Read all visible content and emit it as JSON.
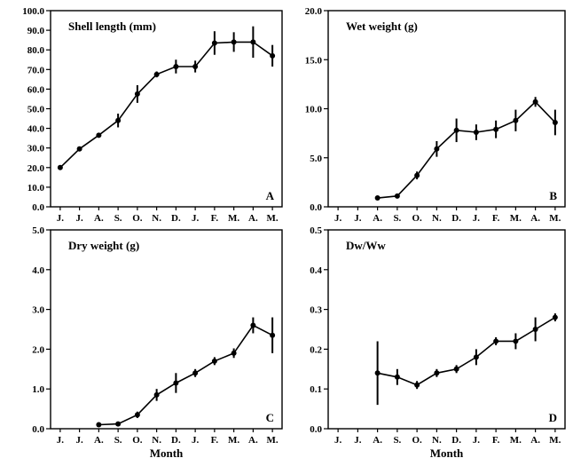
{
  "chart_data": [
    {
      "type": "line",
      "title": "Shell length (mm)",
      "panel_label": "A",
      "xlabel": "",
      "categories": [
        "J.",
        "J.",
        "A.",
        "S.",
        "O.",
        "N.",
        "D.",
        "J.",
        "F.",
        "M.",
        "A.",
        "M."
      ],
      "ylim": [
        0,
        100
      ],
      "yticks": [
        "0.0",
        "10.0",
        "20.0",
        "30.0",
        "40.0",
        "50.0",
        "60.0",
        "70.0",
        "80.0",
        "90.0",
        "100.0"
      ],
      "values": [
        20.0,
        29.5,
        36.5,
        44.0,
        57.5,
        67.5,
        71.5,
        71.5,
        83.5,
        84.0,
        84.0,
        77.0
      ],
      "errors": [
        0.6,
        0.6,
        1.0,
        3.5,
        4.5,
        1.5,
        3.5,
        3.0,
        6.0,
        5.0,
        8.0,
        5.5
      ]
    },
    {
      "type": "line",
      "title": "Wet weight (g)",
      "panel_label": "B",
      "xlabel": "",
      "categories": [
        "J.",
        "J.",
        "A.",
        "S.",
        "O.",
        "N.",
        "D.",
        "J.",
        "F.",
        "M.",
        "A.",
        "M."
      ],
      "ylim": [
        0,
        20
      ],
      "yticks": [
        "0.0",
        "5.0",
        "10.0",
        "15.0",
        "20.0"
      ],
      "values": [
        null,
        null,
        0.9,
        1.1,
        3.2,
        5.9,
        7.8,
        7.6,
        7.9,
        8.8,
        10.7,
        8.6
      ],
      "errors": [
        0,
        0,
        0.1,
        0.1,
        0.4,
        0.8,
        1.2,
        0.8,
        0.9,
        1.1,
        0.5,
        1.3
      ]
    },
    {
      "type": "line",
      "title": "Dry weight (g)",
      "panel_label": "C",
      "xlabel": "Month",
      "categories": [
        "J.",
        "J.",
        "A.",
        "S.",
        "O.",
        "N.",
        "D.",
        "J.",
        "F.",
        "M.",
        "A.",
        "M."
      ],
      "ylim": [
        0,
        5
      ],
      "yticks": [
        "0.0",
        "1.0",
        "2.0",
        "3.0",
        "4.0",
        "5.0"
      ],
      "values": [
        null,
        null,
        0.1,
        0.12,
        0.35,
        0.85,
        1.15,
        1.4,
        1.7,
        1.9,
        2.6,
        2.35
      ],
      "errors": [
        0,
        0,
        0.03,
        0.04,
        0.08,
        0.15,
        0.25,
        0.1,
        0.1,
        0.12,
        0.2,
        0.45
      ]
    },
    {
      "type": "line",
      "title": "Dw/Ww",
      "panel_label": "D",
      "xlabel": "Month",
      "categories": [
        "J.",
        "J.",
        "A.",
        "S.",
        "O.",
        "N.",
        "D.",
        "J.",
        "F.",
        "M.",
        "A.",
        "M."
      ],
      "ylim": [
        0,
        0.5
      ],
      "yticks": [
        "0.0",
        "0.1",
        "0.2",
        "0.3",
        "0.4",
        "0.5"
      ],
      "values": [
        null,
        null,
        0.14,
        0.13,
        0.11,
        0.14,
        0.15,
        0.18,
        0.22,
        0.22,
        0.25,
        0.28
      ],
      "errors": [
        0,
        0,
        0.08,
        0.02,
        0.01,
        0.01,
        0.01,
        0.02,
        0.01,
        0.02,
        0.03,
        0.01
      ]
    }
  ]
}
